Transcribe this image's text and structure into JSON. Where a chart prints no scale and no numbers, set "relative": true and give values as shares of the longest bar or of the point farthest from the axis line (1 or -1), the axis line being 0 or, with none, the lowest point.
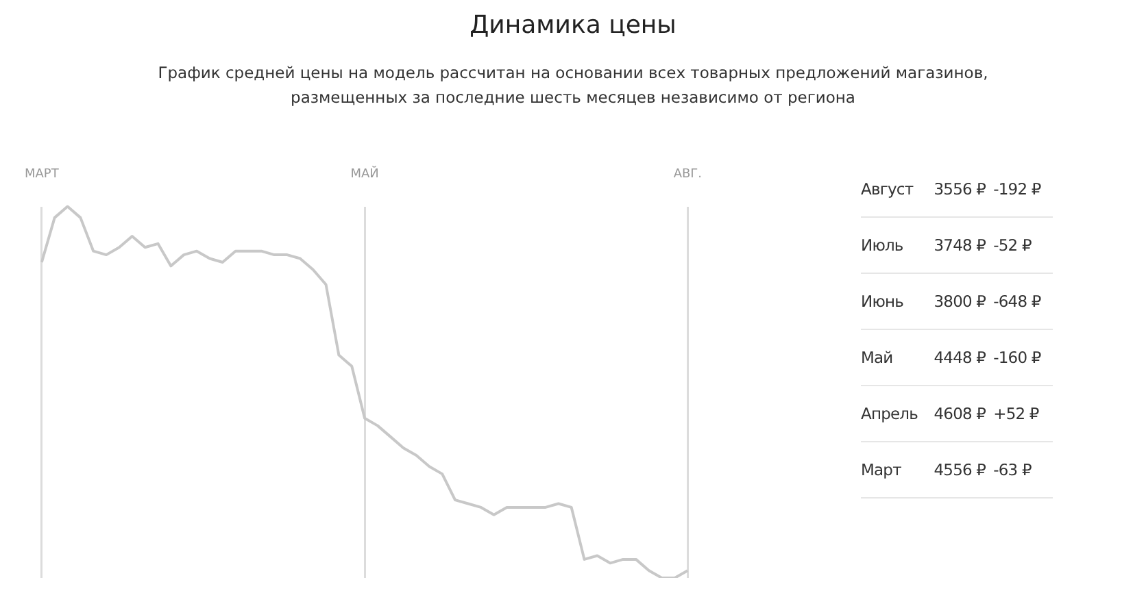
{
  "chart_data": [
    {
      "type": "line",
      "title": "Динамика цены",
      "subtitle": "График средней цены на модель рассчитан на основании всех товарных предложений магазинов,\nразмещенных за последние шесть месяцев независимо от региона",
      "relative": true,
      "marker": "none",
      "grid": "x",
      "legend": false,
      "categories": [
        "МАРТ",
        null,
        null,
        null,
        null,
        null,
        null,
        null,
        null,
        null,
        null,
        null,
        null,
        null,
        null,
        null,
        null,
        null,
        null,
        null,
        null,
        null,
        null,
        null,
        null,
        "МАЙ",
        null,
        null,
        null,
        null,
        null,
        null,
        null,
        null,
        null,
        null,
        null,
        null,
        null,
        null,
        null,
        null,
        null,
        null,
        null,
        null,
        null,
        null,
        null,
        null,
        "АВГ."
      ],
      "series": [
        {
          "color": "#c8c8c8",
          "values": [
            0.85,
            0.97,
            1,
            0.97,
            0.88,
            0.87,
            0.89,
            0.92,
            0.89,
            0.9,
            0.84,
            0.87,
            0.88,
            0.86,
            0.85,
            0.88,
            0.88,
            0.88,
            0.87,
            0.87,
            0.86,
            0.83,
            0.79,
            0.6,
            0.57,
            0.43,
            0.41,
            0.38,
            0.35,
            0.33,
            0.3,
            0.28,
            0.21,
            0.2,
            0.19,
            0.17,
            0.19,
            0.19,
            0.19,
            0.19,
            0.2,
            0.19,
            0.05,
            0.06,
            0.04,
            0.05,
            0.05,
            0.02,
            0,
            0,
            0.02
          ]
        }
      ]
    },
    {
      "type": "other",
      "annotations": [
        "Август",
        "3556 ₽",
        "-192 ₽",
        "Июль",
        "3748 ₽",
        "-52 ₽",
        "Июнь",
        "3800 ₽",
        "-648 ₽",
        "Май",
        "4448 ₽",
        "-160 ₽",
        "Апрель",
        "4608 ₽",
        "+52 ₽",
        "Март",
        "4556 ₽",
        "-63 ₽"
      ]
    }
  ]
}
